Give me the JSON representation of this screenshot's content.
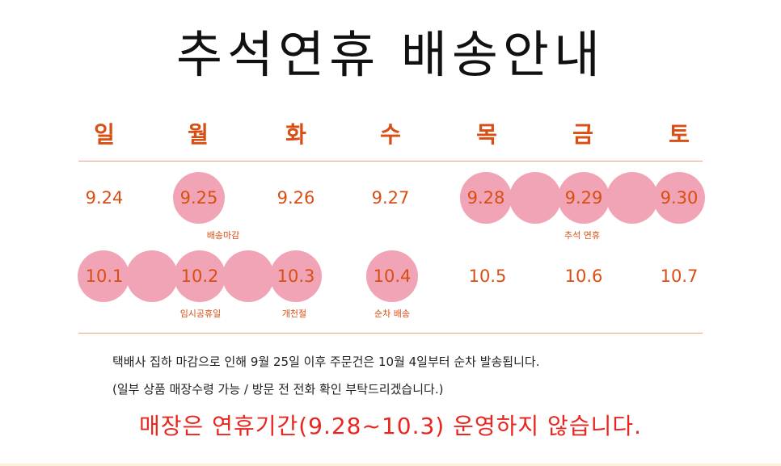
{
  "title": "추석연휴 배송안내",
  "days": [
    "일",
    "월",
    "화",
    "수",
    "목",
    "금",
    "토"
  ],
  "week1": {
    "dates": [
      "9.24",
      "9.25",
      "9.26",
      "9.27",
      "9.28",
      "9.29",
      "9.30"
    ],
    "events": [
      {
        "label": "배송마감"
      },
      {
        "label": "추석 연휴"
      }
    ]
  },
  "week2": {
    "dates": [
      "10.1",
      "10.2",
      "10.3",
      "10.4",
      "10.5",
      "10.6",
      "10.7"
    ],
    "events": [
      {
        "label": "임시공휴일"
      },
      {
        "label": "개천절"
      },
      {
        "label": "순차 배송"
      }
    ]
  },
  "notice": {
    "line1": "택배사 집하 마감으로 인해 9월 25일 이후 주문건은 10월 4일부터 순차 발송됩니다.",
    "line2": "(일부 상품 매장수령 가능 / 방문 전 전화 확인 부탁드리겠습니다.)"
  },
  "closed_notice": "매장은 연휴기간(9.28~10.3) 운영하지 않습니다.",
  "colors": {
    "accent": "#d94e12",
    "highlight_circle": "#f1a4b5",
    "closed_text": "#e8261f",
    "rule": "#f2a27a"
  }
}
